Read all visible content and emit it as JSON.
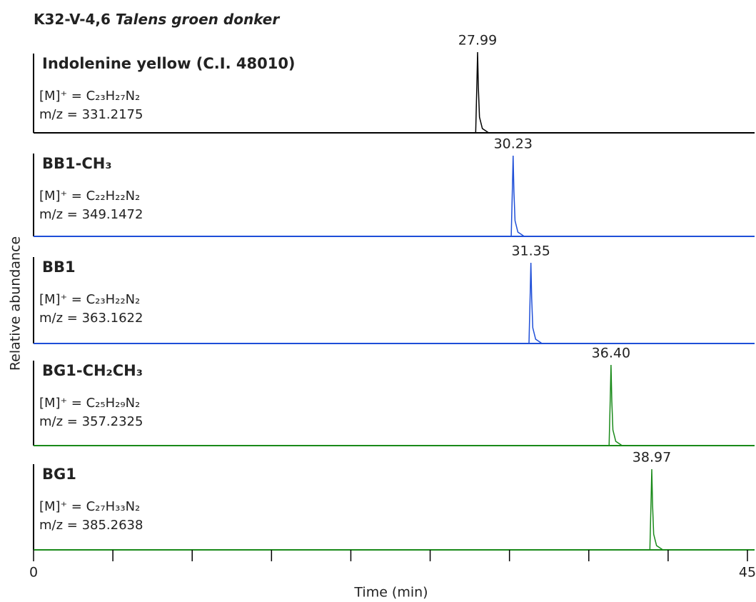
{
  "chart_data": {
    "type": "chromatogram",
    "title": "K32-V-4,6",
    "title_italic": "Talens groen donker",
    "xlabel": "Time (min)",
    "ylabel": "Relative abundance",
    "xlim": [
      0,
      45
    ],
    "xticks": [
      0,
      45
    ],
    "minor_xticks": [
      5,
      10,
      15,
      20,
      25,
      30,
      35,
      40
    ],
    "panels": [
      {
        "name": "Indolenine yellow (C.I. 48010)",
        "formula": "[M]⁺ = C₂₃H₂₇N₂",
        "mz": "m/z = 331.2175",
        "color": "#000000",
        "mz_color": "#000000",
        "peak": 27.99,
        "peak_label": "27.99"
      },
      {
        "name": "BB1-CH₃",
        "formula": "[M]⁺ = C₂₂H₂₂N₂",
        "mz": "m/z = 349.1472",
        "color": "#1f4fd8",
        "mz_color": "#1f4fd8",
        "peak": 30.23,
        "peak_label": "30.23"
      },
      {
        "name": "BB1",
        "formula": "[M]⁺ = C₂₃H₂₂N₂",
        "mz": "m/z = 363.1622",
        "color": "#1f4fd8",
        "mz_color": "#1f4fd8",
        "peak": 31.35,
        "peak_label": "31.35"
      },
      {
        "name": "BG1-CH₂CH₃",
        "formula": "[M]⁺ = C₂₅H₂₉N₂",
        "mz": "m/z = 357.2325",
        "color": "#1a8a1a",
        "mz_color": "#1a8a1a",
        "peak": 36.4,
        "peak_label": "36.40"
      },
      {
        "name": "BG1",
        "formula": "[M]⁺ = C₂₇H₃₃N₂",
        "mz": "m/z = 385.2638",
        "color": "#1a8a1a",
        "mz_color": "#1a8a1a",
        "peak": 38.97,
        "peak_label": "38.97"
      }
    ]
  }
}
